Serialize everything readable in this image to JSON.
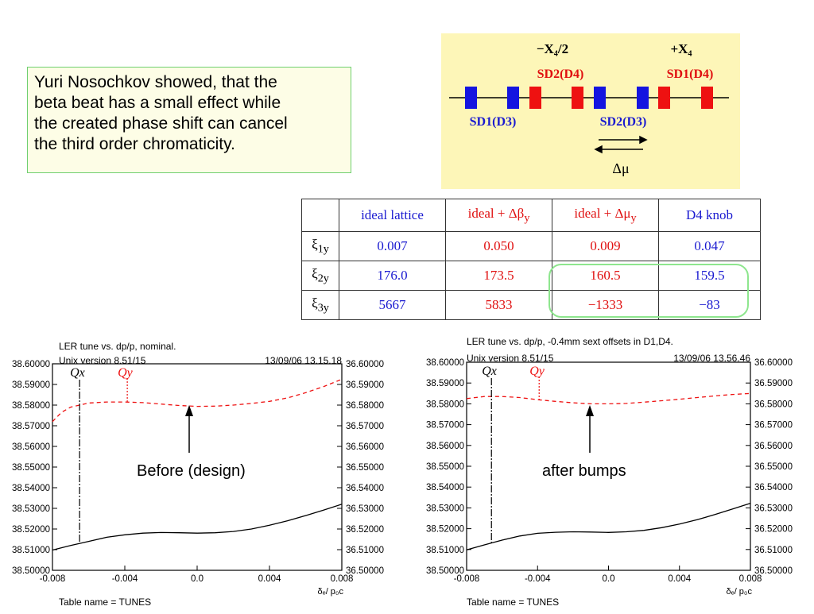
{
  "note": {
    "lines": [
      "Yuri Nosochkov showed, that the",
      "beta beat has a small effect while",
      "the created phase shift can cancel",
      "the third order chromaticity."
    ]
  },
  "diagram": {
    "label_minus": "−X₄/2",
    "label_plus": "+X₄",
    "sd2_d4": "SD2(D4)",
    "sd1_d4": "SD1(D4)",
    "sd1_d3": "SD1(D3)",
    "sd2_d3": "SD2(D3)",
    "delta_mu": "Δμ",
    "colors": {
      "background": "#fdf6b8",
      "blue_magnet": "#1414e0",
      "red_magnet": "#ee1111",
      "label_red": "#e01010",
      "label_blue": "#1a1ad0"
    }
  },
  "table": {
    "headers": [
      "",
      "ideal lattice",
      "ideal + Δβ",
      "ideal + Δμ",
      "D4 knob"
    ],
    "header_subscripts": [
      "",
      "",
      "y",
      "y",
      ""
    ],
    "row_labels": [
      {
        "sym": "ξ",
        "sub": "1y"
      },
      {
        "sym": "ξ",
        "sub": "2y"
      },
      {
        "sym": "ξ",
        "sub": "3y"
      }
    ],
    "rows": [
      [
        "0.007",
        "0.050",
        "0.009",
        "0.047"
      ],
      [
        "176.0",
        "173.5",
        "160.5",
        "159.5"
      ],
      [
        "5667",
        "5833",
        "−1333",
        "−83"
      ]
    ]
  },
  "annotations": {
    "before": "Before (design)",
    "after": "after bumps"
  },
  "chart_data": [
    {
      "type": "line",
      "title": "LER tune vs. dp/p, nominal.",
      "subtitle": "Unix version 8.51/15",
      "timestamp": "13/09/06  13.15.18",
      "xlabel": "δₑ/ p₀c",
      "table_name": "Table name = TUNES",
      "xlim": [
        -0.008,
        0.008
      ],
      "x_ticks": [
        "-0.008",
        "-0.004",
        "0.0",
        "0.004",
        "0.008"
      ],
      "left_ylim": [
        38.5,
        38.6
      ],
      "right_ylim": [
        36.5,
        36.6
      ],
      "left_ticks": [
        "38.50000",
        "38.51000",
        "38.52000",
        "38.53000",
        "38.54000",
        "38.55000",
        "38.56000",
        "38.57000",
        "38.58000",
        "38.59000",
        "38.60000"
      ],
      "right_ticks": [
        "36.50000",
        "36.51000",
        "36.52000",
        "36.53000",
        "36.54000",
        "36.55000",
        "36.56000",
        "36.57000",
        "36.58000",
        "36.59000",
        "36.60000"
      ],
      "series": [
        {
          "name": "Qx",
          "axis": "left",
          "style": "solid",
          "color": "#000000",
          "x": [
            -0.008,
            -0.007,
            -0.006,
            -0.005,
            -0.004,
            -0.003,
            -0.002,
            -0.001,
            0.0,
            0.001,
            0.002,
            0.003,
            0.004,
            0.005,
            0.006,
            0.007,
            0.008
          ],
          "y": [
            38.5098,
            38.512,
            38.514,
            38.516,
            38.5172,
            38.518,
            38.5183,
            38.5182,
            38.518,
            38.5182,
            38.5188,
            38.52,
            38.5218,
            38.524,
            38.5265,
            38.5292,
            38.532
          ]
        },
        {
          "name": "Qy",
          "axis": "right",
          "style": "dashed",
          "color": "#ee1111",
          "x": [
            -0.008,
            -0.0075,
            -0.007,
            -0.006,
            -0.005,
            -0.004,
            -0.003,
            -0.002,
            -0.001,
            0.0,
            0.001,
            0.002,
            0.003,
            0.004,
            0.005,
            0.006,
            0.007,
            0.008
          ],
          "y": [
            36.572,
            36.5765,
            36.579,
            36.581,
            36.5815,
            36.5815,
            36.5812,
            36.5805,
            36.5798,
            36.5794,
            36.5795,
            36.58,
            36.5808,
            36.5818,
            36.5835,
            36.586,
            36.589,
            36.5925
          ]
        }
      ],
      "marker_x": -0.0065,
      "marker_labels": [
        "Qx",
        "Qy"
      ]
    },
    {
      "type": "line",
      "title": "LER tune vs. dp/p, -0.4mm sext offsets in D1,D4.",
      "subtitle": "Unix version 8.51/15",
      "timestamp": "13/09/06  13.56.46",
      "xlabel": "δₑ/ p₀c",
      "table_name": "Table name = TUNES",
      "xlim": [
        -0.008,
        0.008
      ],
      "x_ticks": [
        "-0.008",
        "-0.004",
        "0.0",
        "0.004",
        "0.008"
      ],
      "left_ylim": [
        38.5,
        38.6
      ],
      "right_ylim": [
        36.5,
        36.6
      ],
      "left_ticks": [
        "38.50000",
        "38.51000",
        "38.52000",
        "38.53000",
        "38.54000",
        "38.55000",
        "38.56000",
        "38.57000",
        "38.58000",
        "38.59000",
        "38.60000"
      ],
      "right_ticks": [
        "36.50000",
        "36.51000",
        "36.52000",
        "36.53000",
        "36.54000",
        "36.55000",
        "36.56000",
        "36.57000",
        "36.58000",
        "36.59000",
        "36.60000"
      ],
      "series": [
        {
          "name": "Qx",
          "axis": "left",
          "style": "solid",
          "color": "#000000",
          "x": [
            -0.008,
            -0.007,
            -0.006,
            -0.005,
            -0.004,
            -0.003,
            -0.002,
            -0.001,
            0.0,
            0.001,
            0.002,
            0.003,
            0.004,
            0.005,
            0.006,
            0.007,
            0.008
          ],
          "y": [
            38.5098,
            38.5122,
            38.5145,
            38.5165,
            38.5178,
            38.5183,
            38.5185,
            38.5184,
            38.5182,
            38.5185,
            38.5192,
            38.5205,
            38.5222,
            38.5243,
            38.5268,
            38.5295,
            38.5322
          ]
        },
        {
          "name": "Qy",
          "axis": "right",
          "style": "dashed",
          "color": "#ee1111",
          "x": [
            -0.008,
            -0.007,
            -0.006,
            -0.005,
            -0.004,
            -0.003,
            -0.002,
            -0.001,
            0.0,
            0.001,
            0.002,
            0.003,
            0.004,
            0.005,
            0.006,
            0.007,
            0.008
          ],
          "y": [
            36.5825,
            36.5835,
            36.5835,
            36.583,
            36.582,
            36.5812,
            36.5805,
            36.58,
            36.58,
            36.5802,
            36.5808,
            36.5815,
            36.5822,
            36.583,
            36.5838,
            36.5845,
            36.585
          ]
        }
      ],
      "marker_x": -0.0066,
      "marker_labels": [
        "Qx",
        "Qy"
      ]
    }
  ]
}
